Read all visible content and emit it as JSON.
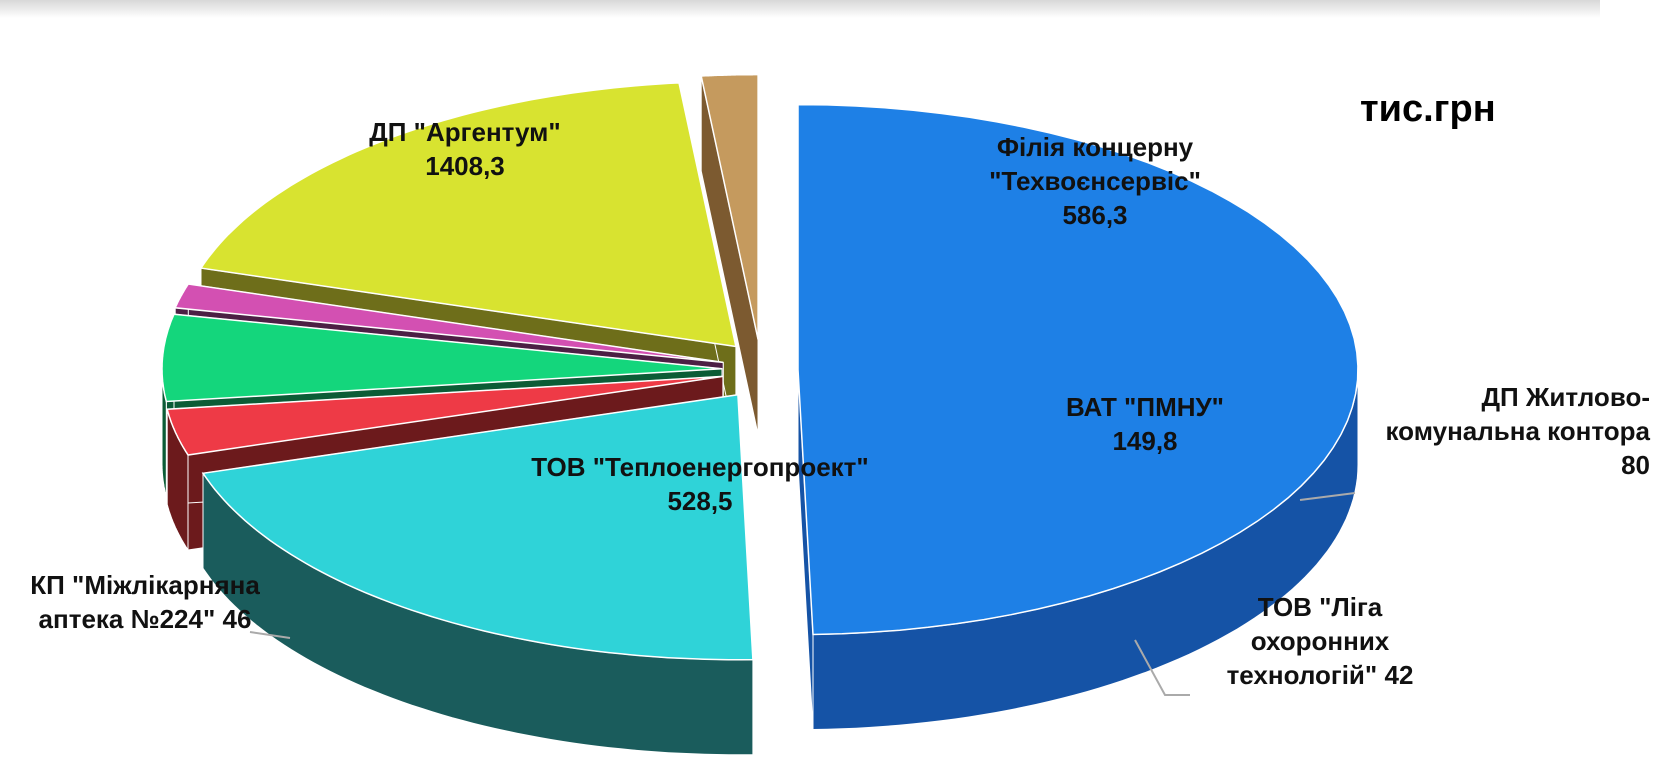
{
  "chart_data": {
    "type": "pie3d",
    "unit_label": "тис.грн",
    "categories": [
      "ДП \"Аргентум\"",
      "Філія концерну \"Техвоєнсервіс\"",
      "ДП Житлово-комунальна контора",
      "ВАТ \"ПМНУ\"",
      "ТОВ \"Ліга охоронних технологій\"",
      "ТОВ \"Теплоенергопроект\"",
      "КП \"Міжлікарняна аптека №224\""
    ],
    "values": [
      1408.3,
      586.3,
      80,
      149.8,
      42,
      528.5,
      46
    ],
    "value_labels": [
      "1408,3",
      "586,3",
      "80",
      "149,8",
      "42",
      "528,5",
      "46"
    ],
    "colors": [
      "#1e80e6",
      "#2fd3d8",
      "#ee3a46",
      "#14d67c",
      "#d350b2",
      "#d8e330",
      "#c59a5e"
    ],
    "side_colors": [
      "#1553a6",
      "#1a5c5c",
      "#6c1a1c",
      "#0b5c36",
      "#4c1f44",
      "#6e6e1a",
      "#7c5a30"
    ]
  }
}
